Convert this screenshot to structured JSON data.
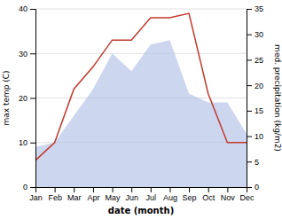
{
  "chart_data": {
    "type": "line",
    "xlabel": "date (month)",
    "ylabel": "max temp (C)",
    "y2label": "med. precipitation (kg/m2)",
    "categories": [
      "Jan",
      "Feb",
      "Mar",
      "Apr",
      "May",
      "Jun",
      "Jul",
      "Aug",
      "Sep",
      "Oct",
      "Nov",
      "Dec"
    ],
    "series": [
      {
        "type": "area",
        "color": "#b8c4e8",
        "values": [
          9,
          10,
          16,
          22,
          30,
          26,
          32,
          33,
          21,
          19,
          19,
          12
        ]
      },
      {
        "type": "line",
        "color": "#c0392b",
        "values": [
          6,
          10,
          22,
          27,
          33,
          33,
          38,
          38,
          39,
          21,
          10,
          10
        ]
      }
    ],
    "ylim": [
      0,
      40
    ],
    "yticks": [
      0,
      10,
      20,
      30,
      40
    ],
    "y2lim": [
      0,
      35
    ],
    "y2ticks": [
      0,
      5,
      10,
      15,
      20,
      25,
      30,
      35
    ],
    "grid": true
  }
}
